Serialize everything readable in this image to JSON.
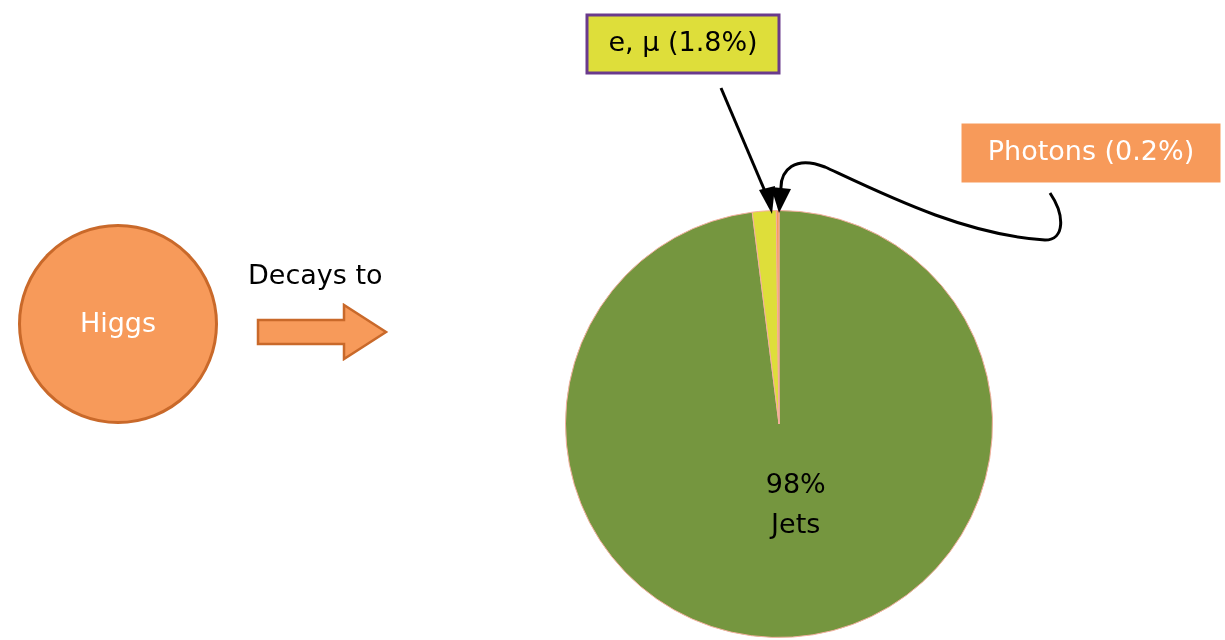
{
  "chart_data": {
    "type": "pie",
    "categories": [
      "Jets",
      "e, μ",
      "Photons"
    ],
    "values": [
      98,
      1.8,
      0.2
    ],
    "colors": [
      "#75963f",
      "#dede3a",
      "#f79a5a"
    ],
    "value_labels": [
      "98%",
      "(1.8%)",
      "(0.2%)"
    ],
    "legend": false,
    "annotations": [
      "Higgs",
      "Decays to"
    ]
  }
}
